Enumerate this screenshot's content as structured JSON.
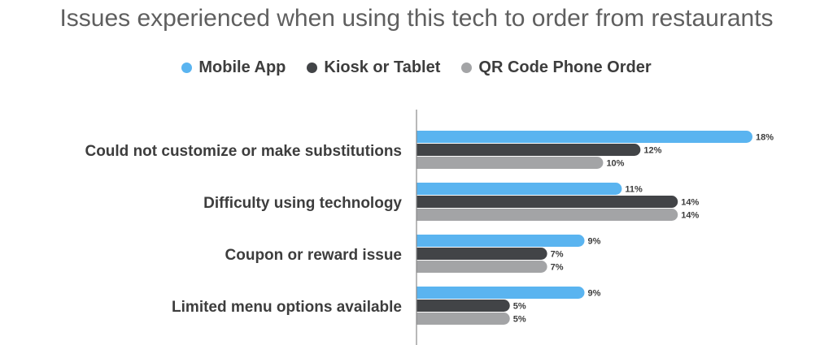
{
  "chart_data": {
    "type": "bar",
    "orientation": "horizontal",
    "title": "Issues experienced when using this tech to order from restaurants",
    "legend_position": "top-center",
    "grid": false,
    "xlim": [
      0,
      18
    ],
    "categories": [
      "Could not customize or make substitutions",
      "Difficulty using technology",
      "Coupon or reward issue",
      "Limited menu options available"
    ],
    "series": [
      {
        "name": "Mobile App",
        "color": "#5ab4f0",
        "values": [
          18,
          11,
          9,
          9
        ],
        "labels": [
          "18%",
          "11%",
          "9%",
          "9%"
        ]
      },
      {
        "name": "Kiosk or Tablet",
        "color": "#424447",
        "values": [
          12,
          14,
          7,
          5
        ],
        "labels": [
          "12%",
          "14%",
          "7%",
          "5%"
        ]
      },
      {
        "name": "QR Code Phone Order",
        "color": "#a3a4a6",
        "values": [
          10,
          14,
          7,
          5
        ],
        "labels": [
          "10%",
          "14%",
          "7%",
          "5%"
        ]
      }
    ]
  }
}
